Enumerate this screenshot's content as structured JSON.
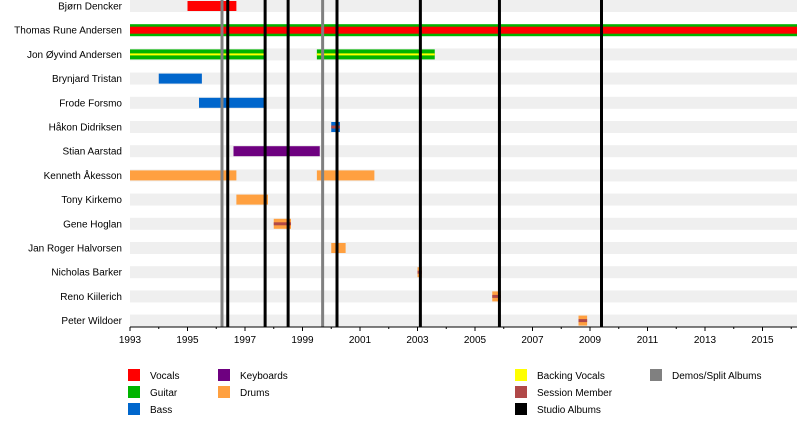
{
  "chart_data": {
    "type": "timeline",
    "title": "",
    "xlabel": "",
    "ylabel": "",
    "x_range": [
      1993,
      2016.2
    ],
    "x_ticks": [
      1993,
      1995,
      1997,
      1999,
      2001,
      2003,
      2005,
      2007,
      2009,
      2011,
      2013,
      2015
    ],
    "colors": {
      "vocals": "#ff0000",
      "guitar": "#00b400",
      "bass": "#0066cc",
      "keyboards": "#6e0080",
      "drums": "#ffa040",
      "backing_vocals": "#ffff00",
      "session_member": "#b04848",
      "studio_albums": "#000000",
      "demos_split": "#808080",
      "row_stripe": "#efefef"
    },
    "legend": [
      {
        "key": "vocals",
        "label": "Vocals"
      },
      {
        "key": "guitar",
        "label": "Guitar"
      },
      {
        "key": "bass",
        "label": "Bass"
      },
      {
        "key": "keyboards",
        "label": "Keyboards"
      },
      {
        "key": "drums",
        "label": "Drums"
      },
      {
        "key": "backing_vocals",
        "label": "Backing Vocals"
      },
      {
        "key": "session_member",
        "label": "Session Member"
      },
      {
        "key": "studio_albums",
        "label": "Studio Albums"
      },
      {
        "key": "demos_split",
        "label": "Demos/Split Albums"
      }
    ],
    "members": [
      {
        "name": "Bjørn Dencker",
        "bars": [
          {
            "role": "vocals",
            "start": 1995.0,
            "end": 1996.7
          }
        ]
      },
      {
        "name": "Thomas Rune Andersen",
        "bars": [
          {
            "role": "vocals",
            "start": 1993.0,
            "end": 2016.2,
            "with_guitar": true
          }
        ]
      },
      {
        "name": "Jon Øyvind Andersen",
        "bars": [
          {
            "role": "guitar",
            "start": 1993.0,
            "end": 1997.7,
            "with_backing_vocals": true
          },
          {
            "role": "guitar",
            "start": 1999.5,
            "end": 2003.6,
            "with_backing_vocals": true
          }
        ]
      },
      {
        "name": "Brynjard Tristan",
        "bars": [
          {
            "role": "bass",
            "start": 1994.0,
            "end": 1995.5
          }
        ]
      },
      {
        "name": "Frode Forsmo",
        "bars": [
          {
            "role": "bass",
            "start": 1995.4,
            "end": 1997.7
          }
        ]
      },
      {
        "name": "Håkon Didriksen",
        "bars": [
          {
            "role": "bass",
            "start": 2000.0,
            "end": 2000.3,
            "session": true
          }
        ]
      },
      {
        "name": "Stian Aarstad",
        "bars": [
          {
            "role": "keyboards",
            "start": 1996.6,
            "end": 1999.6
          }
        ]
      },
      {
        "name": "Kenneth Åkesson",
        "bars": [
          {
            "role": "drums",
            "start": 1993.0,
            "end": 1996.7
          },
          {
            "role": "drums",
            "start": 1999.5,
            "end": 2001.5
          }
        ]
      },
      {
        "name": "Tony Kirkemo",
        "bars": [
          {
            "role": "drums",
            "start": 1996.7,
            "end": 1997.8
          }
        ]
      },
      {
        "name": "Gene Hoglan",
        "bars": [
          {
            "role": "drums",
            "start": 1998.0,
            "end": 1998.6,
            "session": true
          }
        ]
      },
      {
        "name": "Jan Roger Halvorsen",
        "bars": [
          {
            "role": "drums",
            "start": 2000.0,
            "end": 2000.5
          }
        ]
      },
      {
        "name": "Nicholas Barker",
        "bars": [
          {
            "role": "drums",
            "start": 2003.0,
            "end": 2003.15,
            "session": true
          }
        ]
      },
      {
        "name": "Reno Kiilerich",
        "bars": [
          {
            "role": "drums",
            "start": 2005.6,
            "end": 2005.9,
            "session": true
          }
        ]
      },
      {
        "name": "Peter Wildoer",
        "bars": [
          {
            "role": "drums",
            "start": 2008.6,
            "end": 2008.9,
            "session": true
          }
        ]
      }
    ],
    "events": [
      {
        "type": "demos_split",
        "x": 1996.2
      },
      {
        "type": "studio_albums",
        "x": 1996.4
      },
      {
        "type": "studio_albums",
        "x": 1997.7
      },
      {
        "type": "studio_albums",
        "x": 1998.5
      },
      {
        "type": "demos_split",
        "x": 1999.7
      },
      {
        "type": "studio_albums",
        "x": 2000.2
      },
      {
        "type": "studio_albums",
        "x": 2003.1
      },
      {
        "type": "studio_albums",
        "x": 2005.85
      },
      {
        "type": "studio_albums",
        "x": 2009.4
      }
    ]
  }
}
